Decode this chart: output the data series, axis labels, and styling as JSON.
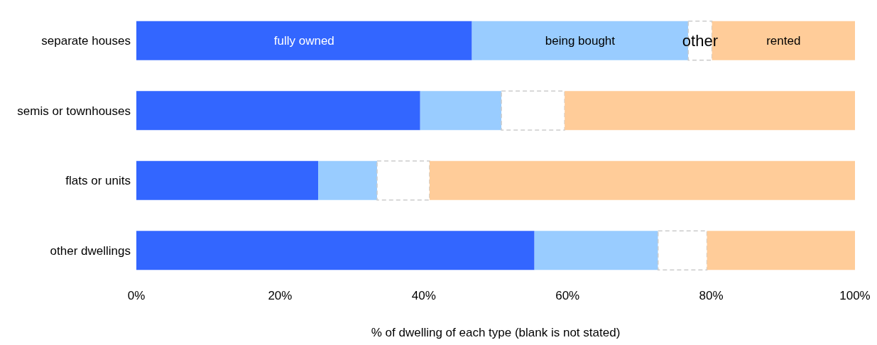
{
  "chart_data": {
    "type": "bar",
    "orientation": "horizontal",
    "stacked": true,
    "xlabel": "% of dwelling of each type (blank is not stated)",
    "categories": [
      "separate houses",
      "semis or townhouses",
      "flats or units",
      "other dwellings"
    ],
    "series": [
      {
        "name": "fully owned",
        "color": "#3366ff",
        "values": [
          46.7,
          39.5,
          25.3,
          55.4
        ]
      },
      {
        "name": "being bought",
        "color": "#99ccff",
        "values": [
          30.1,
          11.3,
          8.2,
          17.2
        ]
      },
      {
        "name": "other",
        "color": "#ffffff",
        "line_style": "dashed",
        "values": [
          3.3,
          8.8,
          7.3,
          6.8
        ]
      },
      {
        "name": "rented",
        "color": "#ffcc99",
        "values": [
          19.9,
          40.4,
          59.2,
          20.6
        ]
      }
    ],
    "xlim": [
      0,
      100
    ],
    "xticks": [
      {
        "value": 0,
        "label": "0%"
      },
      {
        "value": 20,
        "label": "20%"
      },
      {
        "value": 40,
        "label": "40%"
      },
      {
        "value": 60,
        "label": "60%"
      },
      {
        "value": 80,
        "label": "80%"
      },
      {
        "value": 100,
        "label": "100%"
      }
    ],
    "grid": false,
    "legend": false
  }
}
